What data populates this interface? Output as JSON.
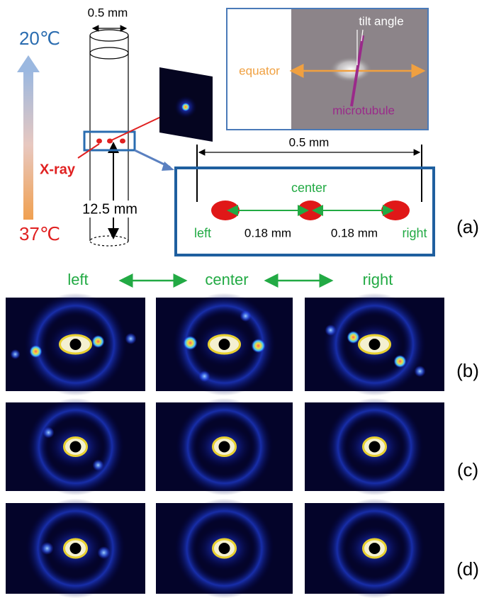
{
  "panel_a": {
    "tube_width": "0.5 mm",
    "temp_top": "20℃",
    "temp_bottom": "37℃",
    "beam": "X-ray",
    "height": "12.5 mm",
    "inset": {
      "tilt": "tilt angle",
      "equator": "equator",
      "microtubule": "microtubule"
    },
    "zoom": {
      "width": "0.5 mm",
      "center": "center",
      "left": "left",
      "right": "right",
      "spacings": [
        "0.18 mm",
        "0.18 mm"
      ]
    },
    "label": "(a)"
  },
  "columns": [
    "left",
    "center",
    "right"
  ],
  "rows": [
    {
      "label": "(b)"
    },
    {
      "label": "(c)"
    },
    {
      "label": "(d)"
    }
  ]
}
